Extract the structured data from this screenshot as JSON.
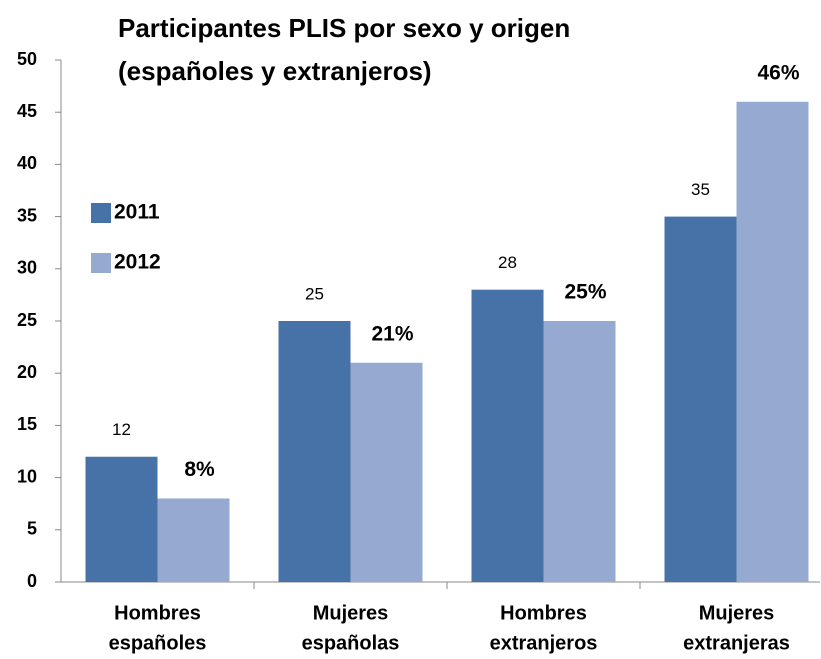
{
  "chart_data": {
    "type": "bar",
    "title": [
      "Participantes PLIS por sexo y origen",
      "(españoles y extranjeros)"
    ],
    "categories": [
      [
        "Hombres",
        "españoles"
      ],
      [
        "Mujeres",
        "españolas"
      ],
      [
        "Hombres",
        "extranjeros"
      ],
      [
        "Mujeres",
        "extranjeras"
      ]
    ],
    "series": [
      {
        "name": "2011",
        "color": "#4672a8",
        "values": [
          12,
          25,
          28,
          35
        ]
      },
      {
        "name": "2012",
        "color": "#95a9d1",
        "values": [
          8,
          21,
          25,
          46
        ],
        "value_labels": [
          "8%",
          "21%",
          "25%",
          "46%"
        ]
      }
    ],
    "ylim": [
      0,
      50
    ],
    "yticks": [
      0,
      5,
      10,
      15,
      20,
      25,
      30,
      35,
      40,
      45,
      50
    ],
    "grid": false
  }
}
